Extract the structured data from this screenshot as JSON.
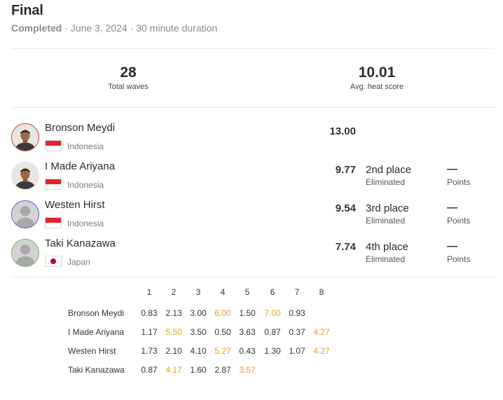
{
  "heat": {
    "title": "Final",
    "status": "Completed",
    "date": "June 3, 2024",
    "duration": "30 minute duration",
    "separator": " · "
  },
  "stats": {
    "total_waves_value": "28",
    "total_waves_label": "Total waves",
    "avg_score_value": "10.01",
    "avg_score_label": "Avg. heat score"
  },
  "surfers": [
    {
      "name": "Bronson Meydi",
      "country": "Indonesia",
      "flag": "indonesia-flag",
      "ring_color": "#c8322e",
      "avatar": "photo",
      "total": "13.00",
      "place": "",
      "place_note": "",
      "points": "",
      "points_label": ""
    },
    {
      "name": "I Made Ariyana",
      "country": "Indonesia",
      "flag": "indonesia-flag",
      "ring_color": "#ffffff",
      "avatar": "photo",
      "total": "9.77",
      "place": "2nd place",
      "place_note": "Eliminated",
      "points": "—",
      "points_label": "Points"
    },
    {
      "name": "Westen Hirst",
      "country": "Indonesia",
      "flag": "indonesia-flag",
      "ring_color": "#3c57c8",
      "avatar": "placeholder",
      "total": "9.54",
      "place": "3rd place",
      "place_note": "Eliminated",
      "points": "—",
      "points_label": "Points"
    },
    {
      "name": "Taki Kanazawa",
      "country": "Japan",
      "flag": "japan-flag",
      "ring_color": "#63b54a",
      "avatar": "placeholder",
      "total": "7.74",
      "place": "4th place",
      "place_note": "Eliminated",
      "points": "—",
      "points_label": "Points"
    }
  ],
  "wave_table": {
    "headers": [
      "1",
      "2",
      "3",
      "4",
      "5",
      "6",
      "7",
      "8"
    ],
    "counted_color": "#eb9b23",
    "rows": [
      {
        "name": "Bronson Meydi",
        "scores": [
          "0.83",
          "2.13",
          "3.00",
          "6.00",
          "1.50",
          "7.00",
          "0.93",
          ""
        ],
        "counted": [
          false,
          false,
          false,
          true,
          false,
          true,
          false,
          false
        ]
      },
      {
        "name": "I Made Ariyana",
        "scores": [
          "1.17",
          "5.50",
          "3.50",
          "0.50",
          "3.63",
          "0.87",
          "0.37",
          "4.27"
        ],
        "counted": [
          false,
          true,
          false,
          false,
          false,
          false,
          false,
          true
        ]
      },
      {
        "name": "Westen Hirst",
        "scores": [
          "1.73",
          "2.10",
          "4.10",
          "5.27",
          "0.43",
          "1.30",
          "1.07",
          "4.27"
        ],
        "counted": [
          false,
          false,
          false,
          true,
          false,
          false,
          false,
          true
        ]
      },
      {
        "name": "Taki Kanazawa",
        "scores": [
          "0.87",
          "4.17",
          "1.60",
          "2.87",
          "3.57",
          "",
          "",
          ""
        ],
        "counted": [
          false,
          true,
          false,
          false,
          true,
          false,
          false,
          false
        ]
      }
    ]
  }
}
